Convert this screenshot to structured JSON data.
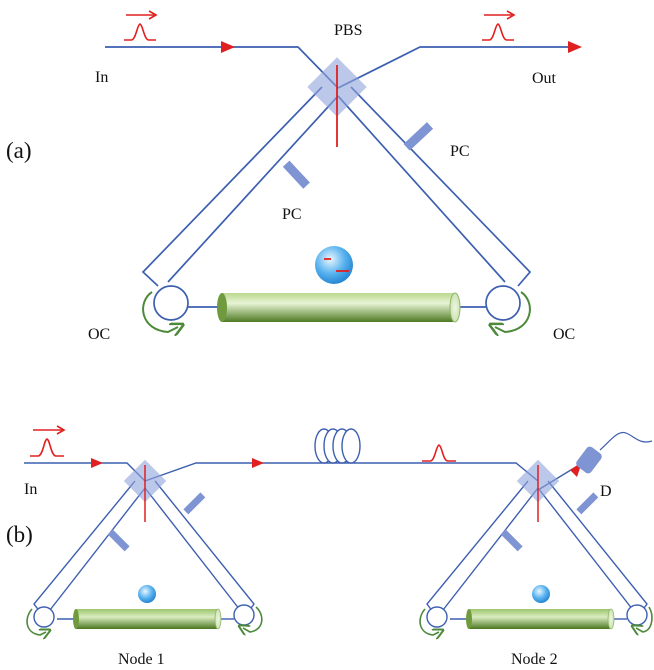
{
  "colors": {
    "fiber": "#3d5fb0",
    "arrow_red": "#e02020",
    "pbs_fill": "#8fa4dc",
    "pc_fill": "#7f94d2",
    "rotation_arrow": "#4c8a3a",
    "cavity_green_dark": "#5f8a2e",
    "cavity_green_light": "#dbeec0",
    "atom_blue": "#37a2e6"
  },
  "panel_a": {
    "panel_label": "(a)",
    "input_label": "In",
    "output_label": "Out",
    "pbs_label": "PBS",
    "pc_right_label": "PC",
    "pc_left_label": "PC",
    "oc_left_label": "OC",
    "oc_right_label": "OC",
    "icons": [
      "photon-pulse-icon",
      "polarizing-beam-splitter-icon",
      "polarization-controller-icon",
      "optical-circulator-icon",
      "optical-cavity-icon",
      "atom-icon"
    ]
  },
  "panel_b": {
    "panel_label": "(b)",
    "input_label": "In",
    "detector_label": "D",
    "node1_label": "Node 1",
    "node2_label": "Node 2",
    "icons": [
      "photon-pulse-icon",
      "fiber-spool-icon",
      "detector-icon"
    ]
  }
}
